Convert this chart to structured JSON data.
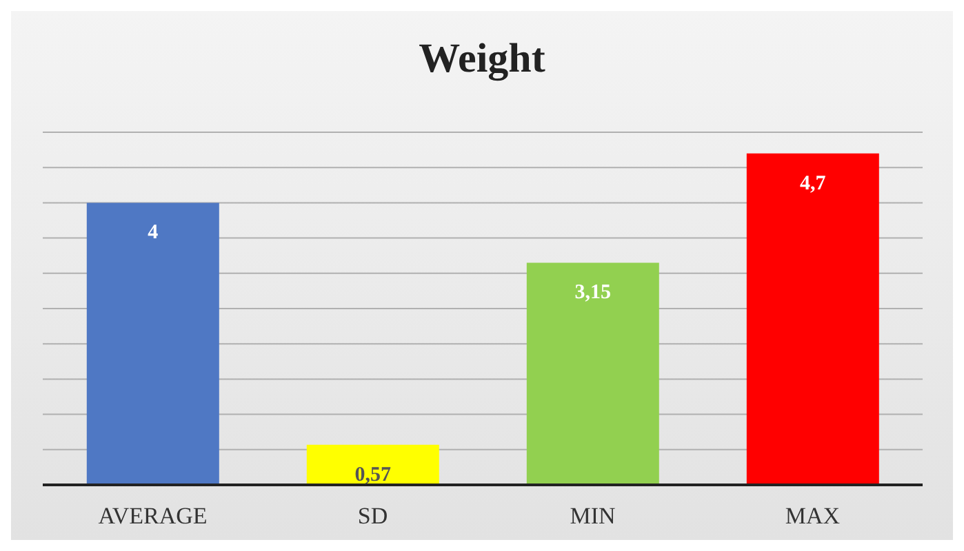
{
  "chart_data": {
    "type": "bar",
    "title": "Weight",
    "categories": [
      "AVERAGE",
      "SD",
      "MIN",
      "MAX"
    ],
    "values": [
      4,
      0.57,
      3.15,
      4.7
    ],
    "colors": [
      "#4f78c4",
      "#ffff00",
      "#92d050",
      "#ff0000"
    ],
    "value_labels": [
      "4",
      "0,57",
      "3,15",
      "4,7"
    ],
    "ylim": [
      0,
      5
    ],
    "yticks": [
      {
        "value": 0,
        "label": null
      },
      {
        "value": 0.5,
        "label": null
      },
      {
        "value": 1,
        "label": null
      },
      {
        "value": 1.5,
        "label": null
      },
      {
        "value": 2,
        "label": null
      },
      {
        "value": 2.5,
        "label": null
      },
      {
        "value": 3,
        "label": null
      },
      {
        "value": 3.5,
        "label": null
      },
      {
        "value": 4,
        "label": null
      },
      {
        "value": 4.5,
        "label": null
      },
      {
        "value": 5,
        "label": null
      }
    ],
    "grid": "y",
    "tick_labels": "x",
    "legend": false
  }
}
